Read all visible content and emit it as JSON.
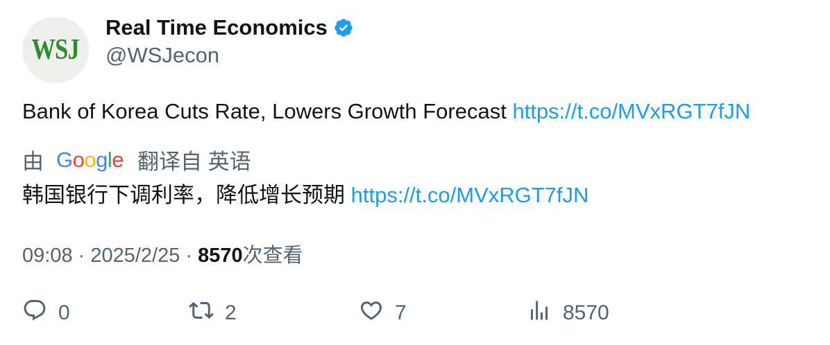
{
  "author": {
    "avatar_text": "WSJ",
    "display_name": "Real Time Economics",
    "handle": "@WSJecon",
    "verified_icon": "verified-badge-icon"
  },
  "tweet": {
    "text": "Bank of Korea Cuts Rate, Lowers Growth Forecast",
    "link": "https://t.co/MVxRGT7fJN"
  },
  "translation": {
    "by_label": "由",
    "google_letters": [
      "G",
      "o",
      "o",
      "g",
      "l",
      "e"
    ],
    "from_label": "翻译自 英语",
    "text": "韩国银行下调利率，降低增长预期",
    "link": "https://t.co/MVxRGT7fJN"
  },
  "meta": {
    "time": "09:08",
    "separator": " · ",
    "date": "2025/2/25",
    "views_count": "8570",
    "views_label": "次查看"
  },
  "actions": {
    "replies": "0",
    "retweets": "2",
    "likes": "7",
    "views": "8570"
  },
  "colors": {
    "link": "#1d9bf0",
    "secondary_text": "#536471",
    "verified": "#1d9bf0",
    "avatar_logo": "#2e8b2e"
  }
}
